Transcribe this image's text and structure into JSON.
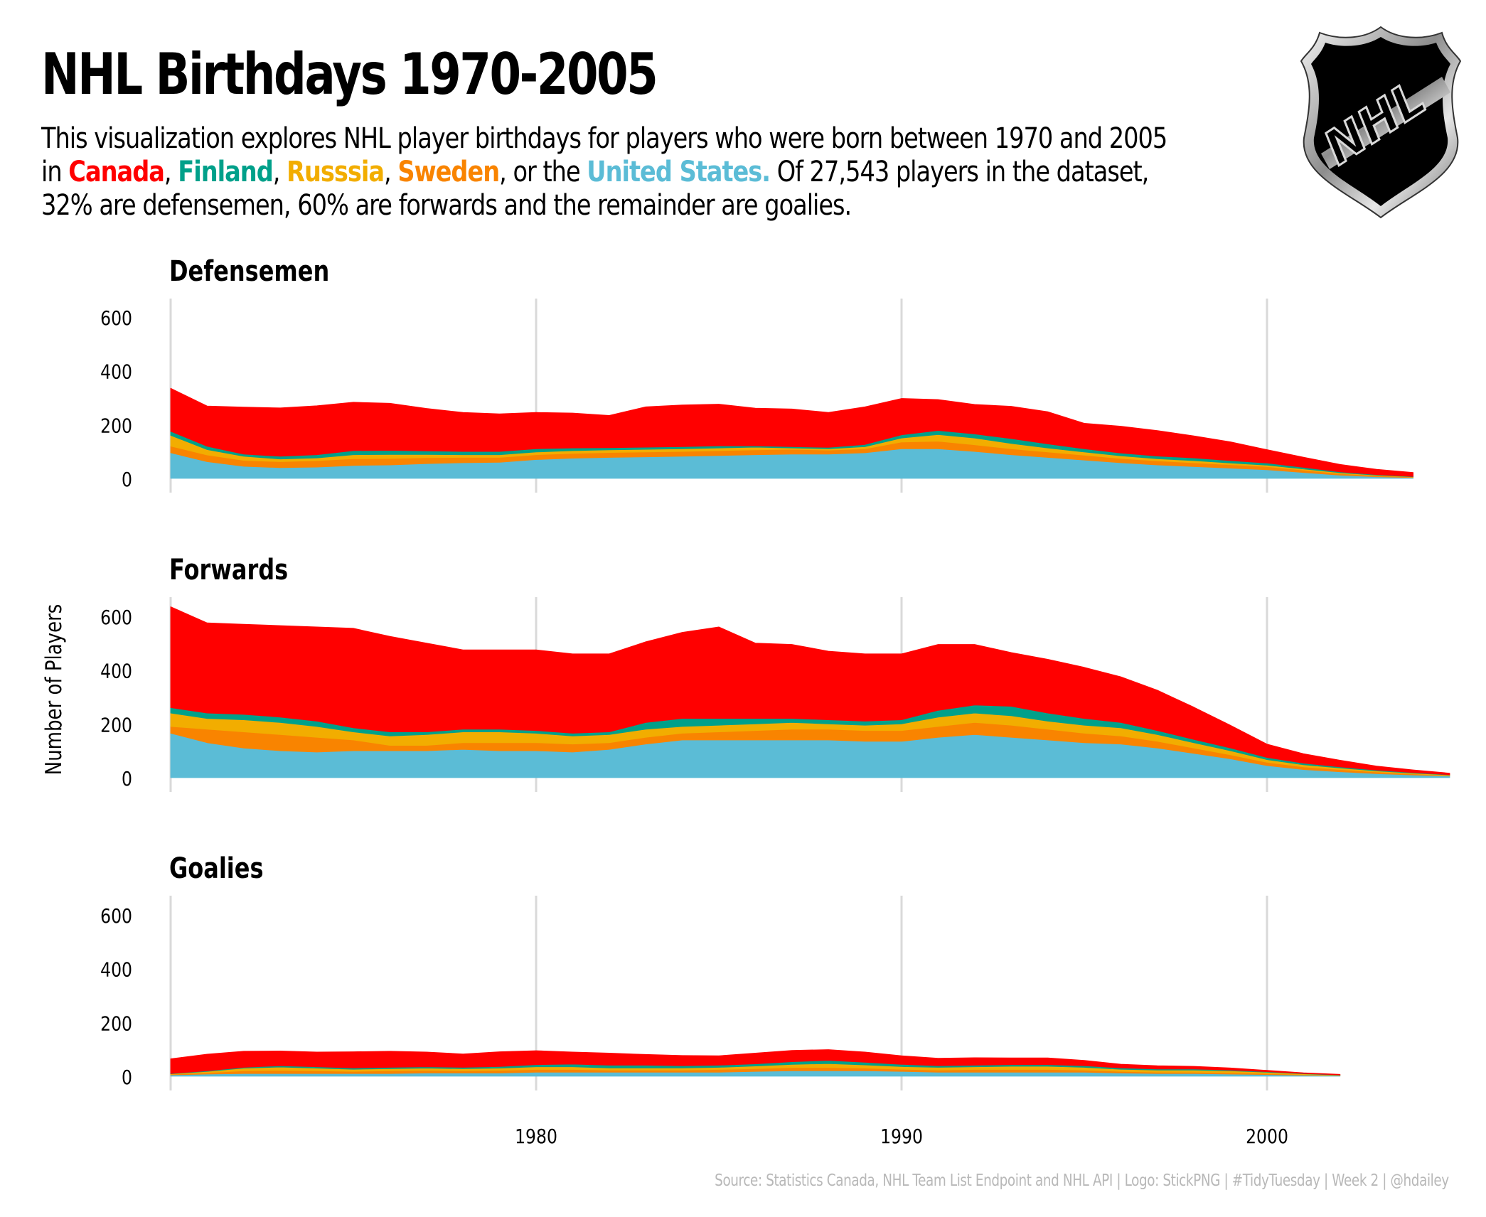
{
  "title": "NHL Birthdays 1970-2005",
  "subtitle": {
    "line1": "This visualization explores NHL player birthdays for players who were born between 1970 and 2005",
    "pre": "in ",
    "canada": "Canada",
    "sep1": ", ",
    "finland": "Finland",
    "sep2": ", ",
    "russia": "Russsia",
    "sep3": ", ",
    "sweden": "Sweden",
    "sep4": ", or the ",
    "usa": "United States.",
    "post": " Of 27,543 players in the dataset,",
    "line3": "32% are defensemen, 60% are forwards and the remainder are goalies."
  },
  "logo": {
    "text": "NHL",
    "icon": "nhl-shield-logo"
  },
  "caption": "Source: Statistics Canada, NHL Team List Endpoint and NHL API | Logo: StickPNG | #TidyTuesday | Week 2 | @hdailey",
  "colors": {
    "United States": "#5bbcd6",
    "Sweden": "#f98400",
    "Russia": "#f2ad00",
    "Finland": "#00a08a",
    "Canada": "#ff0000",
    "grid": "#d9d9d9"
  },
  "chart_data": {
    "type": "area",
    "stacked": true,
    "ylabel": "Number of Players",
    "xlim": [
      1970,
      2005
    ],
    "ylim": [
      0,
      650
    ],
    "yticks": [
      0,
      200,
      400,
      600
    ],
    "xticks": [
      1980,
      1990,
      2000
    ],
    "grid": "vertical",
    "legend": "none (colours in subtitle)",
    "stack_order": [
      "United States",
      "Sweden",
      "Russia",
      "Finland",
      "Canada"
    ],
    "panels": [
      {
        "title": "Defensemen",
        "x": [
          1970,
          1971,
          1972,
          1973,
          1974,
          1975,
          1976,
          1977,
          1978,
          1979,
          1980,
          1981,
          1982,
          1983,
          1984,
          1985,
          1986,
          1987,
          1988,
          1989,
          1990,
          1991,
          1992,
          1993,
          1994,
          1995,
          1996,
          1997,
          1998,
          1999,
          2000,
          2001,
          2002,
          2003,
          2004
        ],
        "series": [
          {
            "name": "United States",
            "values": [
              95,
              62,
              45,
              40,
              42,
              48,
              50,
              55,
              58,
              60,
              70,
              75,
              78,
              80,
              82,
              85,
              88,
              90,
              90,
              95,
              110,
              110,
              100,
              88,
              78,
              68,
              58,
              50,
              44,
              38,
              32,
              22,
              12,
              6,
              3
            ]
          },
          {
            "name": "Sweden",
            "values": [
              25,
              25,
              22,
              22,
              24,
              25,
              24,
              22,
              20,
              18,
              18,
              18,
              18,
              18,
              18,
              18,
              18,
              18,
              15,
              15,
              25,
              28,
              25,
              22,
              20,
              18,
              16,
              15,
              14,
              13,
              12,
              9,
              6,
              4,
              2
            ]
          },
          {
            "name": "Russia",
            "values": [
              40,
              20,
              15,
              10,
              10,
              15,
              15,
              12,
              10,
              10,
              10,
              10,
              10,
              10,
              10,
              10,
              10,
              5,
              5,
              8,
              15,
              25,
              25,
              20,
              15,
              12,
              10,
              8,
              8,
              6,
              5,
              4,
              3,
              2,
              1
            ]
          },
          {
            "name": "Finland",
            "values": [
              15,
              12,
              8,
              10,
              12,
              15,
              15,
              13,
              12,
              12,
              12,
              10,
              8,
              8,
              8,
              8,
              5,
              5,
              5,
              8,
              12,
              15,
              15,
              18,
              15,
              12,
              10,
              10,
              10,
              9,
              8,
              6,
              3,
              2,
              1
            ]
          },
          {
            "name": "Canada",
            "values": [
              160,
              150,
              175,
              180,
              182,
              180,
              175,
              158,
              145,
              140,
              135,
              130,
              120,
              150,
              155,
              155,
              140,
              140,
              130,
              140,
              135,
              115,
              110,
              120,
              120,
              95,
              100,
              95,
              82,
              70,
              50,
              38,
              28,
              20,
              15
            ]
          }
        ]
      },
      {
        "title": "Forwards",
        "x": [
          1970,
          1971,
          1972,
          1973,
          1974,
          1975,
          1976,
          1977,
          1978,
          1979,
          1980,
          1981,
          1982,
          1983,
          1984,
          1985,
          1986,
          1987,
          1988,
          1989,
          1990,
          1991,
          1992,
          1993,
          1994,
          1995,
          1996,
          1997,
          1998,
          1999,
          2000,
          2001,
          2002,
          2003,
          2004,
          2005
        ],
        "series": [
          {
            "name": "United States",
            "values": [
              165,
              130,
              110,
              100,
              95,
              100,
              100,
              100,
              105,
              100,
              100,
              95,
              105,
              125,
              140,
              140,
              140,
              140,
              140,
              135,
              135,
              150,
              160,
              150,
              140,
              130,
              125,
              110,
              90,
              70,
              45,
              30,
              22,
              15,
              10,
              6
            ]
          },
          {
            "name": "Sweden",
            "values": [
              25,
              50,
              60,
              60,
              55,
              40,
              20,
              20,
              25,
              30,
              30,
              30,
              25,
              25,
              25,
              30,
              35,
              40,
              40,
              40,
              40,
              40,
              45,
              45,
              40,
              35,
              30,
              25,
              20,
              15,
              12,
              10,
              8,
              6,
              4,
              2
            ]
          },
          {
            "name": "Russia",
            "values": [
              50,
              40,
              45,
              45,
              40,
              30,
              35,
              40,
              40,
              40,
              35,
              30,
              30,
              30,
              25,
              25,
              25,
              25,
              20,
              20,
              25,
              35,
              35,
              35,
              30,
              30,
              30,
              25,
              20,
              15,
              10,
              8,
              6,
              4,
              3,
              2
            ]
          },
          {
            "name": "Finland",
            "values": [
              20,
              20,
              20,
              20,
              20,
              15,
              15,
              10,
              10,
              10,
              10,
              10,
              10,
              25,
              30,
              25,
              20,
              15,
              15,
              15,
              15,
              25,
              30,
              35,
              30,
              25,
              20,
              15,
              12,
              10,
              8,
              6,
              4,
              3,
              2,
              1
            ]
          },
          {
            "name": "Canada",
            "values": [
              375,
              335,
              335,
              340,
              350,
              370,
              355,
              330,
              295,
              295,
              300,
              295,
              290,
              300,
              320,
              340,
              280,
              275,
              255,
              250,
              245,
              245,
              225,
              200,
              200,
              190,
              170,
              150,
              120,
              85,
              50,
              35,
              25,
              15,
              10,
              6
            ]
          }
        ]
      },
      {
        "title": "Goalies",
        "x": [
          1970,
          1971,
          1972,
          1973,
          1974,
          1975,
          1976,
          1977,
          1978,
          1979,
          1980,
          1981,
          1982,
          1983,
          1984,
          1985,
          1986,
          1987,
          1988,
          1989,
          1990,
          1991,
          1992,
          1993,
          1994,
          1995,
          1996,
          1997,
          1998,
          1999,
          2000,
          2001,
          2002
        ],
        "series": [
          {
            "name": "United States",
            "values": [
              5,
              8,
              10,
              10,
              10,
              10,
              10,
              12,
              12,
              12,
              15,
              15,
              15,
              15,
              15,
              15,
              18,
              20,
              20,
              20,
              18,
              15,
              15,
              15,
              15,
              15,
              12,
              10,
              10,
              8,
              6,
              4,
              2
            ]
          },
          {
            "name": "Sweden",
            "values": [
              2,
              5,
              10,
              12,
              10,
              8,
              10,
              10,
              8,
              10,
              10,
              10,
              8,
              8,
              8,
              10,
              10,
              12,
              12,
              10,
              8,
              8,
              10,
              10,
              10,
              8,
              6,
              5,
              5,
              5,
              4,
              2,
              1
            ]
          },
          {
            "name": "Russia",
            "values": [
              2,
              5,
              10,
              12,
              10,
              8,
              8,
              8,
              8,
              8,
              10,
              10,
              8,
              8,
              8,
              8,
              10,
              12,
              15,
              12,
              10,
              10,
              10,
              12,
              12,
              10,
              8,
              8,
              8,
              7,
              5,
              3,
              1
            ]
          },
          {
            "name": "Finland",
            "values": [
              1,
              2,
              3,
              5,
              5,
              5,
              5,
              5,
              5,
              6,
              8,
              10,
              10,
              10,
              8,
              8,
              8,
              10,
              12,
              10,
              8,
              6,
              6,
              6,
              6,
              6,
              5,
              4,
              4,
              3,
              2,
              1,
              1
            ]
          },
          {
            "name": "Canada",
            "values": [
              55,
              62,
              60,
              55,
              55,
              60,
              60,
              55,
              50,
              55,
              52,
              45,
              45,
              40,
              38,
              35,
              40,
              42,
              40,
              38,
              32,
              28,
              28,
              25,
              25,
              20,
              14,
              12,
              10,
              8,
              5,
              3,
              2
            ]
          }
        ]
      }
    ]
  }
}
